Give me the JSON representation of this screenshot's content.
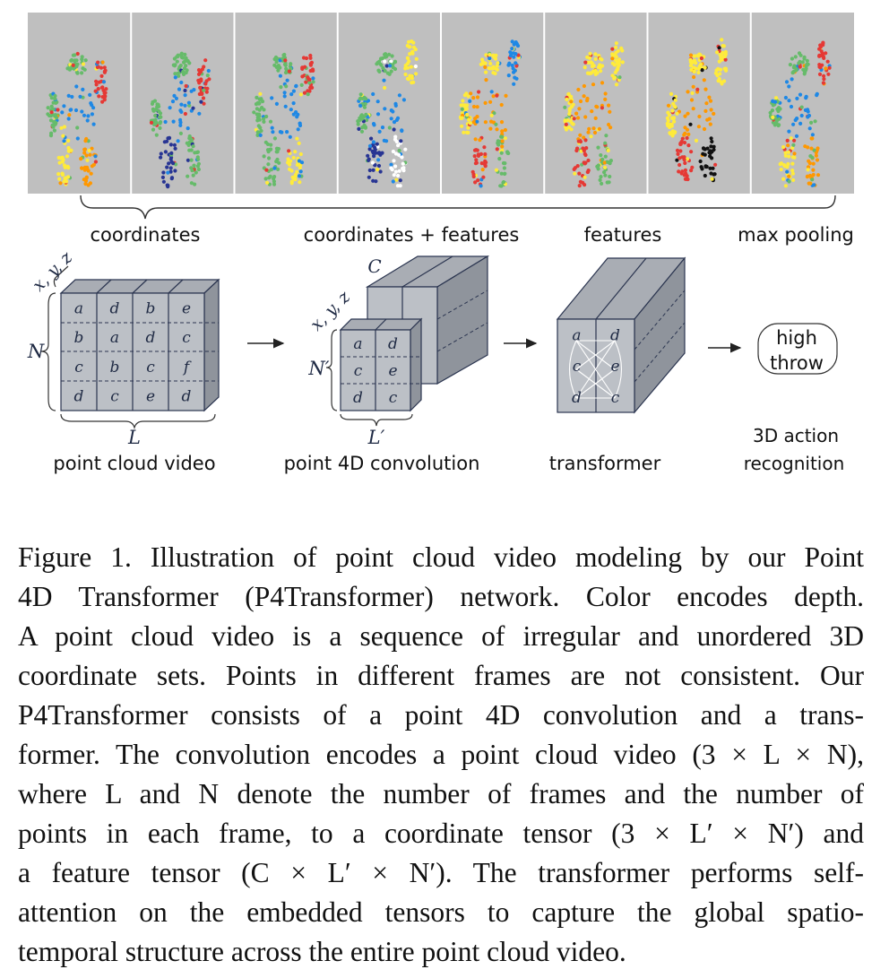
{
  "frames": {
    "count": 8,
    "colors": {
      "background": "#bfbfbf",
      "figure_palette": [
        "#e53935",
        "#ff9800",
        "#ffeb3b",
        "#66bb6a",
        "#1e88e5",
        "#283593",
        "#ffffff",
        "#111111"
      ]
    }
  },
  "stage_labels": {
    "coordinates": "coordinates",
    "coordinates_features": "coordinates + features",
    "features": "features",
    "max_pooling": "max pooling"
  },
  "diagram": {
    "video_block": {
      "axis": "x, y, z",
      "n_label": "N",
      "l_label": "L",
      "caption": "point cloud video",
      "grid": [
        [
          "a",
          "d",
          "b",
          "e"
        ],
        [
          "b",
          "a",
          "d",
          "c"
        ],
        [
          "c",
          "b",
          "c",
          "f"
        ],
        [
          "d",
          "c",
          "e",
          "d"
        ]
      ]
    },
    "conv_block": {
      "axis": "x, y, z",
      "c_label": "C",
      "n_label": "N′",
      "l_label": "L′",
      "caption": "point 4D convolution",
      "grid": [
        [
          "a",
          "d"
        ],
        [
          "c",
          "e"
        ],
        [
          "d",
          "c"
        ]
      ]
    },
    "transformer_block": {
      "caption": "transformer",
      "grid": [
        [
          "a",
          "d"
        ],
        [
          "c",
          "e"
        ],
        [
          "d",
          "c"
        ]
      ]
    },
    "output": {
      "label_line1": "high",
      "label_line2": "throw",
      "caption_line1": "3D action",
      "caption_line2": "recognition"
    },
    "colors": {
      "block_face": "#bcc0c6",
      "block_top": "#a9adb4",
      "block_side": "#8f949c",
      "edge": "#2b3550"
    }
  },
  "caption": {
    "lines": [
      "Figure 1. Illustration of point cloud video modeling by our Point",
      "4D Transformer (P4Transformer) network. Color encodes depth.",
      "A point cloud video is a sequence of irregular and unordered 3D",
      "coordinate sets. Points in different frames are not consistent. Our",
      "P4Transformer consists of a point 4D convolution and a trans-",
      "former. The convolution encodes a point cloud video (3 × L × N),",
      "where L and N denote the number of frames and the number of",
      "points in each frame, to a coordinate tensor (3 × L′ × N′) and",
      "a feature tensor (C × L′ × N′). The transformer performs self-",
      "attention on the embedded tensors to capture the global spatio-",
      "temporal structure across the entire point cloud video."
    ]
  }
}
